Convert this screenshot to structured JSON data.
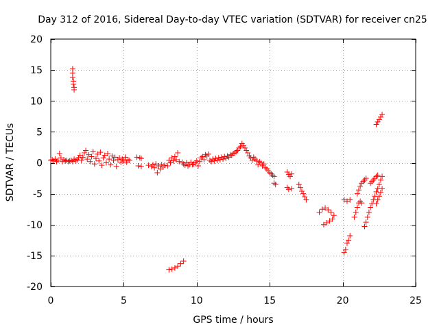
{
  "chart_data": {
    "type": "scatter",
    "title": "Day 312 of 2016, Sidereal Day-to-day VTEC variation (SDTVAR) for receiver cn25",
    "xlabel": "GPS time / hours",
    "ylabel": "SDTVAR / TECUs",
    "xlim": [
      0,
      25
    ],
    "ylim": [
      -20,
      20
    ],
    "xticks": [
      0,
      5,
      10,
      15,
      20,
      25
    ],
    "yticks": [
      -20,
      -15,
      -10,
      -5,
      0,
      5,
      10,
      15,
      20
    ],
    "grid": true,
    "marker": "+",
    "series": [
      {
        "name": "SDTVAR",
        "color": "#ff0000",
        "points": [
          [
            0.0,
            0.4
          ],
          [
            0.1,
            0.5
          ],
          [
            0.2,
            0.3
          ],
          [
            0.3,
            0.6
          ],
          [
            0.4,
            0.2
          ],
          [
            0.5,
            0.4
          ],
          [
            0.6,
            1.5
          ],
          [
            0.7,
            0.8
          ],
          [
            0.8,
            0.2
          ],
          [
            0.9,
            0.5
          ],
          [
            1.0,
            0.3
          ],
          [
            1.1,
            0.4
          ],
          [
            1.2,
            0.2
          ],
          [
            1.3,
            0.3
          ],
          [
            1.4,
            0.4
          ],
          [
            1.5,
            0.2
          ],
          [
            1.6,
            0.6
          ],
          [
            1.7,
            0.3
          ],
          [
            1.8,
            0.5
          ],
          [
            1.9,
            0.8
          ],
          [
            2.0,
            1.2
          ],
          [
            2.1,
            0.4
          ],
          [
            2.2,
            0.9
          ],
          [
            2.3,
            1.6
          ],
          [
            2.4,
            2.0
          ],
          [
            2.5,
            0.6
          ],
          [
            2.6,
            1.3
          ],
          [
            2.7,
            0.2
          ],
          [
            2.8,
            1.0
          ],
          [
            2.9,
            1.8
          ],
          [
            3.0,
            -0.2
          ],
          [
            3.1,
            0.7
          ],
          [
            3.2,
            1.4
          ],
          [
            3.3,
            0.3
          ],
          [
            3.4,
            1.7
          ],
          [
            3.5,
            -0.4
          ],
          [
            3.6,
            0.8
          ],
          [
            3.7,
            1.2
          ],
          [
            3.8,
            0.0
          ],
          [
            3.9,
            1.5
          ],
          [
            4.0,
            0.6
          ],
          [
            4.1,
            -0.3
          ],
          [
            4.2,
            1.1
          ],
          [
            4.3,
            0.4
          ],
          [
            4.4,
            0.9
          ],
          [
            4.5,
            -0.6
          ],
          [
            4.6,
            0.5
          ],
          [
            4.7,
            0.8
          ],
          [
            4.8,
            0.1
          ],
          [
            4.9,
            0.6
          ],
          [
            5.0,
            0.3
          ],
          [
            5.1,
            0.9
          ],
          [
            5.2,
            0.1
          ],
          [
            5.3,
            0.5
          ],
          [
            5.4,
            0.4
          ],
          [
            5.9,
            0.9
          ],
          [
            6.1,
            0.8
          ],
          [
            6.2,
            0.7
          ],
          [
            6.0,
            -0.5
          ],
          [
            6.2,
            -0.6
          ],
          [
            6.7,
            -0.4
          ],
          [
            6.9,
            -0.6
          ],
          [
            7.0,
            -0.3
          ],
          [
            7.1,
            -0.8
          ],
          [
            7.2,
            -0.2
          ],
          [
            7.3,
            -1.6
          ],
          [
            7.4,
            -0.5
          ],
          [
            7.5,
            -1.0
          ],
          [
            7.6,
            -0.3
          ],
          [
            7.7,
            -0.7
          ],
          [
            7.8,
            -0.4
          ],
          [
            8.0,
            -0.5
          ],
          [
            8.1,
            0.4
          ],
          [
            8.2,
            0.0
          ],
          [
            8.3,
            0.8
          ],
          [
            8.4,
            0.3
          ],
          [
            8.5,
            1.0
          ],
          [
            8.6,
            0.5
          ],
          [
            8.7,
            1.6
          ],
          [
            8.8,
            0.2
          ],
          [
            9.0,
            0.1
          ],
          [
            9.1,
            -0.2
          ],
          [
            9.2,
            -0.4
          ],
          [
            9.3,
            0.0
          ],
          [
            9.4,
            -0.5
          ],
          [
            9.5,
            -0.3
          ],
          [
            9.6,
            0.1
          ],
          [
            9.7,
            -0.3
          ],
          [
            9.8,
            -0.2
          ],
          [
            9.9,
            0.0
          ],
          [
            10.0,
            0.3
          ],
          [
            10.1,
            -0.5
          ],
          [
            10.2,
            0.2
          ],
          [
            10.3,
            0.8
          ],
          [
            10.4,
            1.0
          ],
          [
            10.5,
            0.5
          ],
          [
            10.6,
            1.3
          ],
          [
            10.7,
            1.1
          ],
          [
            10.8,
            1.4
          ],
          [
            10.9,
            0.4
          ],
          [
            11.0,
            0.2
          ],
          [
            11.1,
            0.6
          ],
          [
            11.2,
            0.3
          ],
          [
            11.3,
            0.7
          ],
          [
            11.4,
            0.4
          ],
          [
            11.5,
            0.8
          ],
          [
            11.6,
            0.5
          ],
          [
            11.7,
            0.9
          ],
          [
            11.8,
            0.6
          ],
          [
            11.9,
            1.0
          ],
          [
            12.0,
            0.7
          ],
          [
            12.1,
            1.1
          ],
          [
            12.2,
            0.9
          ],
          [
            12.3,
            1.3
          ],
          [
            12.4,
            1.2
          ],
          [
            12.5,
            1.5
          ],
          [
            12.6,
            1.6
          ],
          [
            12.7,
            1.8
          ],
          [
            12.8,
            2.0
          ],
          [
            12.9,
            2.4
          ],
          [
            13.0,
            2.6
          ],
          [
            13.1,
            3.1
          ],
          [
            13.2,
            2.8
          ],
          [
            13.3,
            2.4
          ],
          [
            13.4,
            2.0
          ],
          [
            13.5,
            1.6
          ],
          [
            13.6,
            1.1
          ],
          [
            13.7,
            0.8
          ],
          [
            13.8,
            0.4
          ],
          [
            13.9,
            0.9
          ],
          [
            14.0,
            0.6
          ],
          [
            14.1,
            0.3
          ],
          [
            14.2,
            -0.3
          ],
          [
            14.3,
            0.2
          ],
          [
            14.4,
            0.0
          ],
          [
            14.5,
            -0.5
          ],
          [
            14.6,
            -0.2
          ],
          [
            14.7,
            -0.8
          ],
          [
            14.8,
            -1.0
          ],
          [
            14.9,
            -1.3
          ],
          [
            15.0,
            -1.6
          ],
          [
            15.1,
            -1.8
          ],
          [
            15.2,
            -2.0
          ],
          [
            15.3,
            -2.2
          ],
          [
            15.3,
            -3.3
          ],
          [
            15.4,
            -3.5
          ],
          [
            16.2,
            -1.5
          ],
          [
            16.3,
            -1.9
          ],
          [
            16.4,
            -2.2
          ],
          [
            16.5,
            -1.8
          ],
          [
            16.2,
            -4.0
          ],
          [
            16.3,
            -4.3
          ],
          [
            16.5,
            -4.2
          ],
          [
            17.0,
            -3.5
          ],
          [
            17.1,
            -4.0
          ],
          [
            17.2,
            -4.6
          ],
          [
            17.3,
            -5.0
          ],
          [
            17.4,
            -5.5
          ],
          [
            17.5,
            -6.0
          ],
          [
            18.4,
            -8.0
          ],
          [
            18.6,
            -7.5
          ],
          [
            18.8,
            -7.3
          ],
          [
            19.0,
            -7.6
          ],
          [
            19.2,
            -8.0
          ],
          [
            19.4,
            -8.5
          ],
          [
            18.7,
            -10.0
          ],
          [
            18.9,
            -9.7
          ],
          [
            19.1,
            -9.4
          ],
          [
            19.3,
            -9.1
          ],
          [
            20.1,
            -6.0
          ],
          [
            20.3,
            -6.2
          ],
          [
            20.5,
            -6.0
          ],
          [
            20.1,
            -14.5
          ],
          [
            20.2,
            -14.0
          ],
          [
            20.3,
            -13.0
          ],
          [
            20.4,
            -12.5
          ],
          [
            20.5,
            -11.8
          ],
          [
            20.8,
            -8.8
          ],
          [
            20.9,
            -8.0
          ],
          [
            21.0,
            -7.2
          ],
          [
            21.1,
            -6.5
          ],
          [
            21.2,
            -6.2
          ],
          [
            21.3,
            -6.5
          ],
          [
            21.0,
            -5.0
          ],
          [
            21.1,
            -4.4
          ],
          [
            21.2,
            -3.8
          ],
          [
            21.3,
            -3.3
          ],
          [
            21.4,
            -3.0
          ],
          [
            21.5,
            -2.8
          ],
          [
            21.6,
            -2.5
          ],
          [
            21.5,
            -10.3
          ],
          [
            21.6,
            -9.6
          ],
          [
            21.7,
            -8.8
          ],
          [
            21.8,
            -8.0
          ],
          [
            21.9,
            -7.2
          ],
          [
            22.0,
            -6.6
          ],
          [
            22.1,
            -6.0
          ],
          [
            22.2,
            -5.4
          ],
          [
            22.3,
            -4.7
          ],
          [
            22.4,
            -4.2
          ],
          [
            22.5,
            -3.5
          ],
          [
            22.6,
            -2.8
          ],
          [
            22.7,
            -2.2
          ],
          [
            21.9,
            -3.3
          ],
          [
            22.0,
            -3.0
          ],
          [
            22.1,
            -2.8
          ],
          [
            22.2,
            -2.5
          ],
          [
            22.3,
            -2.2
          ],
          [
            22.4,
            -2.0
          ],
          [
            22.3,
            -6.6
          ],
          [
            22.4,
            -6.0
          ],
          [
            22.5,
            -5.4
          ],
          [
            22.6,
            -4.8
          ],
          [
            22.7,
            -4.2
          ],
          [
            22.3,
            6.2
          ],
          [
            22.4,
            6.6
          ],
          [
            22.5,
            7.0
          ],
          [
            22.6,
            7.4
          ],
          [
            22.7,
            7.8
          ],
          [
            1.5,
            15.2
          ],
          [
            1.5,
            14.5
          ],
          [
            1.5,
            13.8
          ],
          [
            1.55,
            13.2
          ],
          [
            1.55,
            12.7
          ],
          [
            1.6,
            12.2
          ],
          [
            1.6,
            11.8
          ],
          [
            8.1,
            -17.3
          ],
          [
            8.3,
            -17.2
          ],
          [
            8.5,
            -17.0
          ],
          [
            8.7,
            -16.7
          ],
          [
            8.9,
            -16.3
          ],
          [
            9.1,
            -15.9
          ]
        ]
      }
    ]
  }
}
